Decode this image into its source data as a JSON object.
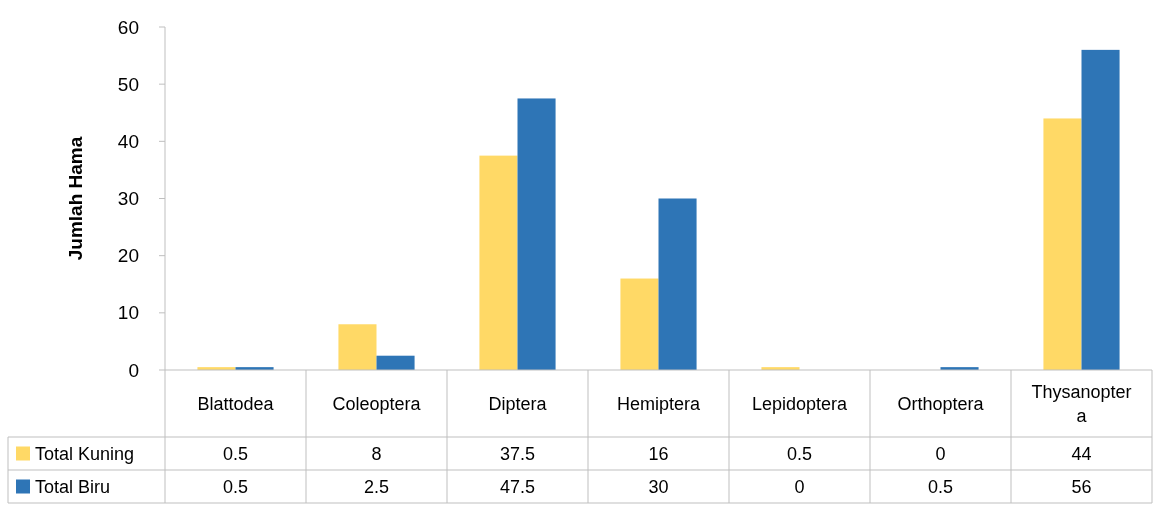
{
  "chart_data": {
    "type": "bar",
    "ylabel": "Jumlah Hama",
    "categories": [
      "Blattodea",
      "Coleoptera",
      "Diptera",
      "Hemiptera",
      "Lepidoptera",
      "Orthoptera",
      "Thysanoptera"
    ],
    "series": [
      {
        "name": "Total Kuning",
        "color": "#ffd966",
        "values": [
          0.5,
          8,
          37.5,
          16,
          0.5,
          0,
          44
        ]
      },
      {
        "name": "Total Biru",
        "color": "#2e75b6",
        "values": [
          0.5,
          2.5,
          47.5,
          30,
          0,
          0.5,
          56
        ]
      }
    ],
    "ylim": [
      0,
      60
    ],
    "yticks": [
      0,
      10,
      20,
      30,
      40,
      50,
      60
    ],
    "data_labels": true,
    "legend": "bottom"
  }
}
